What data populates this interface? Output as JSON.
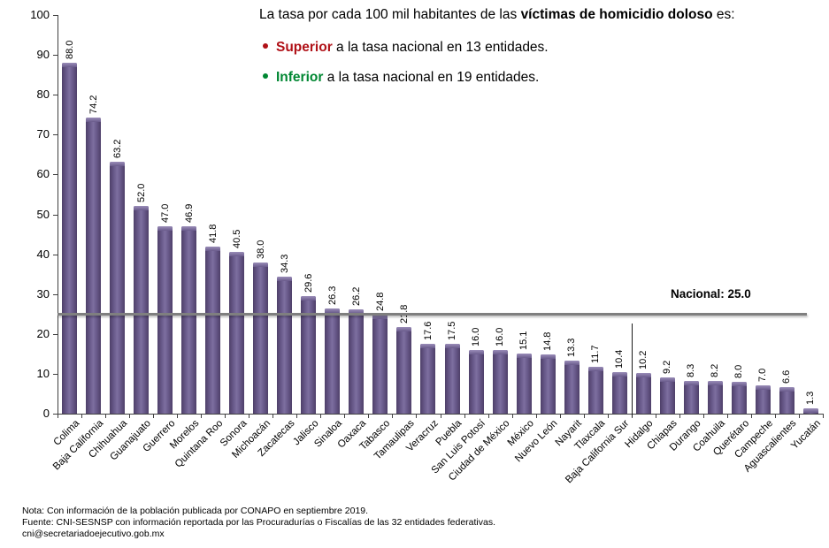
{
  "title": {
    "prefix": "La tasa por cada 100 mil habitantes de las ",
    "bold": "víctimas de homicidio doloso",
    "suffix": " es:",
    "bullets": [
      {
        "word": "Superior",
        "rest": " a la tasa nacional en 13 entidades.",
        "color": "#b01117"
      },
      {
        "word": "Inferior",
        "rest": " a la tasa nacional en 19 entidades.",
        "color": "#008732"
      }
    ]
  },
  "chart_data": {
    "type": "bar",
    "categories": [
      "Colima",
      "Baja California",
      "Chihuahua",
      "Guanajuato",
      "Guerrero",
      "Morelos",
      "Quintana Roo",
      "Sonora",
      "Michoacán",
      "Zacatecas",
      "Jalisco",
      "Sinaloa",
      "Oaxaca",
      "Tabasco",
      "Tamaulipas",
      "Veracruz",
      "Puebla",
      "San Luis Potosí",
      "Ciudad de México",
      "México",
      "Nuevo León",
      "Nayarit",
      "Tlaxcala",
      "Baja California Sur",
      "Hidalgo",
      "Chiapas",
      "Durango",
      "Coahuila",
      "Querétaro",
      "Campeche",
      "Aguascalientes",
      "Yucatán"
    ],
    "values": [
      88.0,
      74.2,
      63.2,
      52.0,
      47.0,
      46.9,
      41.8,
      40.5,
      38.0,
      34.3,
      29.6,
      26.3,
      26.2,
      24.8,
      21.8,
      17.6,
      17.5,
      16.0,
      16.0,
      15.1,
      14.8,
      13.3,
      11.7,
      10.4,
      10.2,
      9.2,
      8.3,
      8.2,
      8.0,
      7.0,
      6.6,
      1.3
    ],
    "ylim": [
      0,
      100
    ],
    "ytick_step": 10,
    "grid": false,
    "legend_position": "none",
    "national_line": {
      "label": "Nacional: 25.0",
      "value": 25.0
    },
    "divider_after_category": "Baja California Sur"
  },
  "colors": {
    "superior_red": "#b01117",
    "inferior_green": "#008732",
    "bar_edge": "#4e3f69",
    "bar_mid": "#6a5b8c",
    "bar_light": "#7d6fa0",
    "bar_cap": "#9a8db9",
    "national_line": "#7f7f7f",
    "axis": "#404040"
  },
  "footer": {
    "note": "Nota: Con información de la población publicada por CONAPO en septiembre 2019.",
    "source": "Fuente: CNI-SESNSP con información reportada por las Procuradurías o Fiscalías de las 32 entidades federativas.",
    "email": "cni@secretariadoejecutivo.gob.mx"
  }
}
